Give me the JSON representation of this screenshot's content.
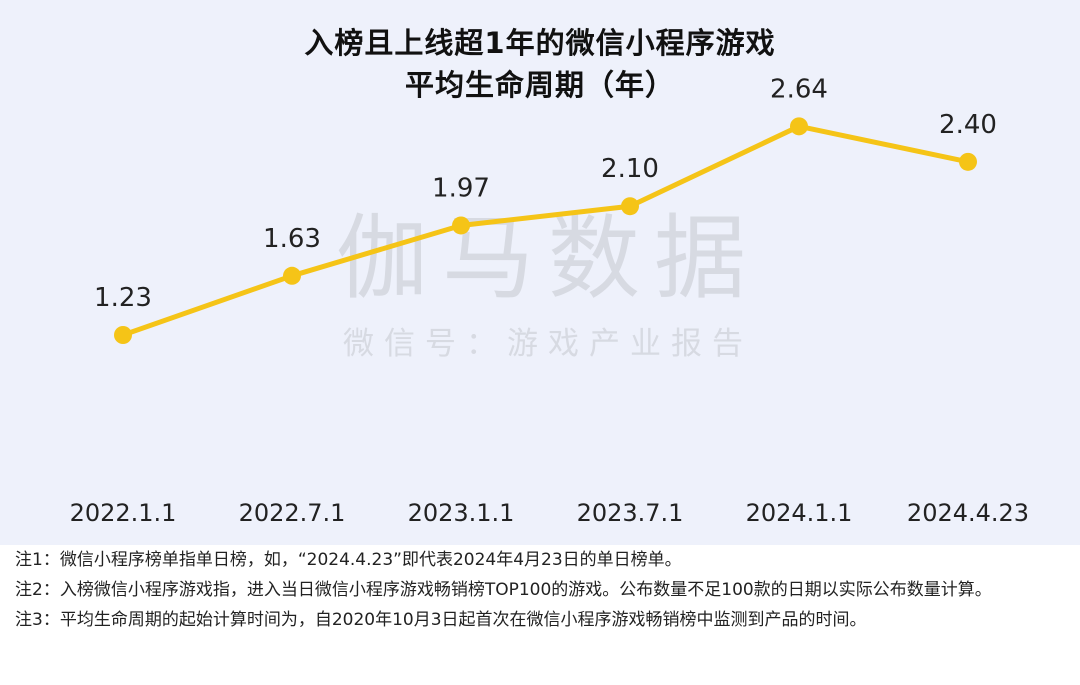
{
  "colors": {
    "line": "#f5c417",
    "panel_bg": "#eef1fb",
    "watermark": "#d5d8df",
    "text": "#222222"
  },
  "chart_data": {
    "type": "line",
    "title": "入榜且上线超1年的微信小程序游戏",
    "subtitle": "平均生命周期（年）",
    "xlabel": "",
    "ylabel": "",
    "categories": [
      "2022.1.1",
      "2022.7.1",
      "2023.1.1",
      "2023.7.1",
      "2024.1.1",
      "2024.4.23"
    ],
    "series": [
      {
        "values": [
          1.23,
          1.63,
          1.97,
          2.1,
          2.64,
          2.4
        ]
      }
    ],
    "data_labels": [
      "1.23",
      "1.63",
      "1.97",
      "2.10",
      "2.64",
      "2.40"
    ],
    "grid": false,
    "legend": "none"
  },
  "watermark": {
    "main": "伽马数据",
    "sub": "微信号：游戏产业报告"
  },
  "notes": [
    "注1：微信小程序榜单指单日榜，如，“2024.4.23”即代表2024年4月23日的单日榜单。",
    "注2：入榜微信小程序游戏指，进入当日微信小程序游戏畅销榜TOP100的游戏。公布数量不足100款的日期以实际公布数量计算。",
    "注3：平均生命周期的起始计算时间为，自2020年10月3日起首次在微信小程序游戏畅销榜中监测到产品的时间。"
  ]
}
